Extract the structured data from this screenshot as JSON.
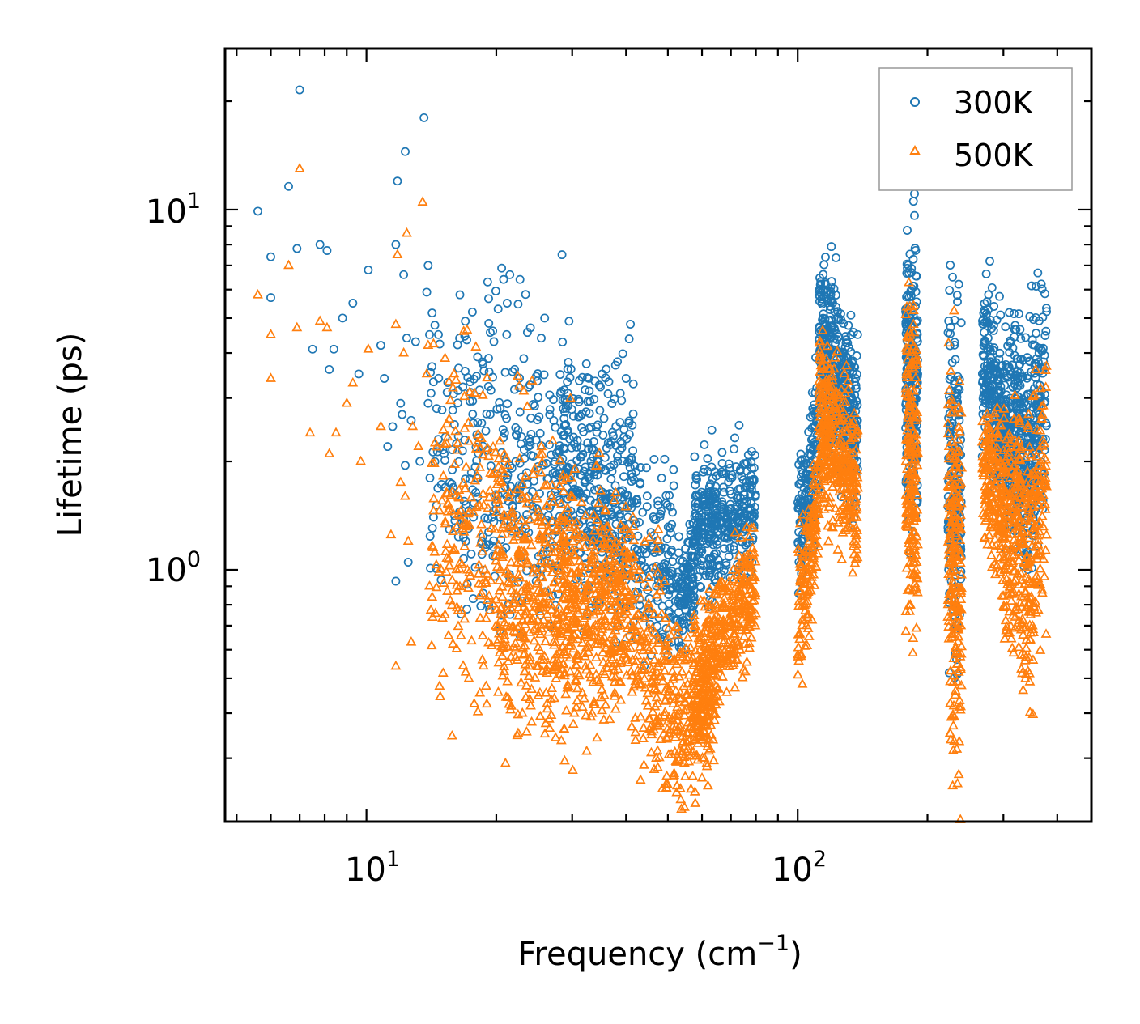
{
  "chart_data": {
    "type": "scatter",
    "xscale": "log",
    "yscale": "log",
    "xlim": [
      4.7,
      480
    ],
    "ylim": [
      0.2,
      28
    ],
    "xlabel": "Frequency (cm",
    "xlabel_sup": "−1",
    "xlabel_end": ")",
    "ylabel": "Lifetime (ps)",
    "xticks": [
      {
        "base": "10",
        "exp": "1",
        "value": 10
      },
      {
        "base": "10",
        "exp": "2",
        "value": 100
      }
    ],
    "yticks": [
      {
        "base": "10",
        "exp": "0",
        "value": 1
      },
      {
        "base": "10",
        "exp": "1",
        "value": 10
      }
    ],
    "legend": {
      "position": "top-right"
    },
    "series": [
      {
        "name": "300K",
        "marker": "circle",
        "color": "#1f77b4",
        "points": [
          [
            5.6,
            9.9
          ],
          [
            6.0,
            7.4
          ],
          [
            6.0,
            5.7
          ],
          [
            6.6,
            11.6
          ],
          [
            6.9,
            7.8
          ],
          [
            7.0,
            21.5
          ],
          [
            7.5,
            4.1
          ],
          [
            7.8,
            8.0
          ],
          [
            8.1,
            7.7
          ],
          [
            8.2,
            3.6
          ],
          [
            8.4,
            4.1
          ],
          [
            8.8,
            5.0
          ],
          [
            9.3,
            5.5
          ],
          [
            9.6,
            3.5
          ],
          [
            10.1,
            6.8
          ],
          [
            10.8,
            4.2
          ],
          [
            11.0,
            3.4
          ],
          [
            11.2,
            2.2
          ],
          [
            11.5,
            2.5
          ],
          [
            11.7,
            8.0
          ],
          [
            11.8,
            12.0
          ],
          [
            11.7,
            0.93
          ],
          [
            12.0,
            2.9
          ],
          [
            12.1,
            2.7
          ],
          [
            12.3,
            14.5
          ],
          [
            12.2,
            6.6
          ],
          [
            12.4,
            4.4
          ],
          [
            12.3,
            1.95
          ],
          [
            12.5,
            1.05
          ],
          [
            12.7,
            2.6
          ],
          [
            13.0,
            4.3
          ],
          [
            13.3,
            2.0
          ],
          [
            13.6,
            18.0
          ],
          [
            13.9,
            7.0
          ],
          [
            13.8,
            5.9
          ],
          [
            13.9,
            2.9
          ],
          [
            14.3,
            1.4
          ],
          [
            14.0,
            4.5
          ],
          [
            28.4,
            7.5
          ],
          [
            19.1,
            6.3
          ],
          [
            20.8,
            6.4
          ],
          [
            22.7,
            6.4
          ],
          [
            21.5,
            6.6
          ],
          [
            17.6,
            5.2
          ],
          [
            20.2,
            5.3
          ],
          [
            21.2,
            5.5
          ],
          [
            25.9,
            5.0
          ],
          [
            24.0,
            4.7
          ],
          [
            29.5,
            4.9
          ],
          [
            37.8,
            3.7
          ],
          [
            35.2,
            3.5
          ],
          [
            40.0,
            3.4
          ]
        ],
        "clusters": [
          {
            "xmin": 14.0,
            "xmax": 42.0,
            "n": 380,
            "ycenter_start": 2.5,
            "ycenter_end": 1.8,
            "spread": 1.6
          },
          {
            "xmin": 16.0,
            "xmax": 28.0,
            "n": 120,
            "ycenter_start": 1.2,
            "ycenter_end": 1.3,
            "spread": 1.4
          },
          {
            "xmin": 28.0,
            "xmax": 52.0,
            "n": 380,
            "ycenter_start": 1.9,
            "ycenter_end": 1.0,
            "spread": 1.45
          },
          {
            "xmin": 52.0,
            "xmax": 57.5,
            "n": 120,
            "ycenter_start": 0.8,
            "ycenter_end": 1.0,
            "spread": 1.25
          },
          {
            "xmin": 57.5,
            "xmax": 80.0,
            "n": 360,
            "ycenter_start": 1.3,
            "ycenter_end": 1.5,
            "spread": 1.25
          },
          {
            "xmin": 100.0,
            "xmax": 112.0,
            "n": 160,
            "ycenter_start": 1.2,
            "ycenter_end": 2.4,
            "spread": 1.3
          },
          {
            "xmin": 112.0,
            "xmax": 128.0,
            "n": 300,
            "ycenter_start": 4.5,
            "ycenter_end": 3.0,
            "spread": 1.35
          },
          {
            "xmin": 128.0,
            "xmax": 138.0,
            "n": 140,
            "ycenter_start": 3.2,
            "ycenter_end": 2.4,
            "spread": 1.35
          },
          {
            "xmin": 178.0,
            "xmax": 190.0,
            "n": 240,
            "ycenter_start": 3.5,
            "ycenter_end": 3.2,
            "spread": 1.6
          },
          {
            "xmin": 223.0,
            "xmax": 240.0,
            "n": 200,
            "ycenter_start": 2.0,
            "ycenter_end": 1.6,
            "spread": 1.9
          },
          {
            "xmin": 268.0,
            "xmax": 300.0,
            "n": 220,
            "ycenter_start": 3.6,
            "ycenter_end": 2.6,
            "spread": 1.35
          },
          {
            "xmin": 300.0,
            "xmax": 330.0,
            "n": 200,
            "ycenter_start": 2.4,
            "ycenter_end": 2.6,
            "spread": 1.45
          },
          {
            "xmin": 330.0,
            "xmax": 378.0,
            "n": 220,
            "ycenter_start": 1.9,
            "ycenter_end": 3.3,
            "spread": 1.55
          }
        ]
      },
      {
        "name": "500K",
        "marker": "triangle",
        "color": "#ff7f0e",
        "points": [
          [
            5.6,
            5.8
          ],
          [
            6.0,
            4.5
          ],
          [
            6.0,
            3.4
          ],
          [
            6.6,
            7.0
          ],
          [
            6.9,
            4.7
          ],
          [
            7.0,
            13.0
          ],
          [
            7.4,
            2.4
          ],
          [
            7.8,
            4.9
          ],
          [
            8.1,
            4.7
          ],
          [
            8.2,
            2.1
          ],
          [
            8.5,
            2.4
          ],
          [
            9.0,
            2.9
          ],
          [
            9.3,
            3.3
          ],
          [
            9.7,
            2.0
          ],
          [
            10.1,
            4.1
          ],
          [
            10.8,
            2.5
          ],
          [
            11.4,
            1.25
          ],
          [
            11.7,
            4.8
          ],
          [
            11.8,
            7.5
          ],
          [
            11.7,
            0.54
          ],
          [
            12.0,
            1.75
          ],
          [
            12.3,
            1.6
          ],
          [
            12.2,
            4.0
          ],
          [
            12.4,
            8.6
          ],
          [
            12.5,
            1.2
          ],
          [
            12.8,
            2.5
          ],
          [
            13.5,
            10.5
          ],
          [
            13.8,
            3.5
          ],
          [
            13.9,
            4.2
          ],
          [
            14.2,
            0.84
          ],
          [
            12.7,
            0.63
          ],
          [
            13.2,
            2.2
          ]
        ],
        "clusters": [
          {
            "xmin": 14.0,
            "xmax": 30.0,
            "n": 380,
            "ycenter_start": 1.5,
            "ycenter_end": 0.95,
            "spread": 1.75
          },
          {
            "xmin": 20.0,
            "xmax": 42.0,
            "n": 420,
            "ycenter_start": 0.72,
            "ycenter_end": 0.68,
            "spread": 1.5
          },
          {
            "xmin": 28.0,
            "xmax": 42.0,
            "n": 260,
            "ycenter_start": 0.95,
            "ycenter_end": 0.85,
            "spread": 1.45
          },
          {
            "xmin": 42.0,
            "xmax": 57.0,
            "n": 260,
            "ycenter_start": 0.62,
            "ycenter_end": 0.36,
            "spread": 1.45
          },
          {
            "xmin": 57.0,
            "xmax": 64.0,
            "n": 240,
            "ycenter_start": 0.45,
            "ycenter_end": 0.5,
            "spread": 1.35
          },
          {
            "xmin": 64.0,
            "xmax": 80.0,
            "n": 260,
            "ycenter_start": 0.6,
            "ycenter_end": 0.9,
            "spread": 1.25
          },
          {
            "xmin": 100.0,
            "xmax": 112.0,
            "n": 140,
            "ycenter_start": 0.75,
            "ycenter_end": 1.5,
            "spread": 1.3
          },
          {
            "xmin": 112.0,
            "xmax": 128.0,
            "n": 260,
            "ycenter_start": 2.6,
            "ycenter_end": 2.0,
            "spread": 1.35
          },
          {
            "xmin": 128.0,
            "xmax": 138.0,
            "n": 120,
            "ycenter_start": 2.1,
            "ycenter_end": 1.6,
            "spread": 1.35
          },
          {
            "xmin": 178.0,
            "xmax": 190.0,
            "n": 200,
            "ycenter_start": 2.1,
            "ycenter_end": 2.0,
            "spread": 1.7
          },
          {
            "xmin": 223.0,
            "xmax": 240.0,
            "n": 220,
            "ycenter_start": 1.1,
            "ycenter_end": 0.8,
            "spread": 2.0
          },
          {
            "xmin": 268.0,
            "xmax": 300.0,
            "n": 180,
            "ycenter_start": 2.0,
            "ycenter_end": 1.5,
            "spread": 1.35
          },
          {
            "xmin": 300.0,
            "xmax": 330.0,
            "n": 180,
            "ycenter_start": 1.2,
            "ycenter_end": 1.4,
            "spread": 1.55
          },
          {
            "xmin": 330.0,
            "xmax": 378.0,
            "n": 200,
            "ycenter_start": 0.9,
            "ycenter_end": 1.8,
            "spread": 1.6
          }
        ]
      }
    ]
  }
}
